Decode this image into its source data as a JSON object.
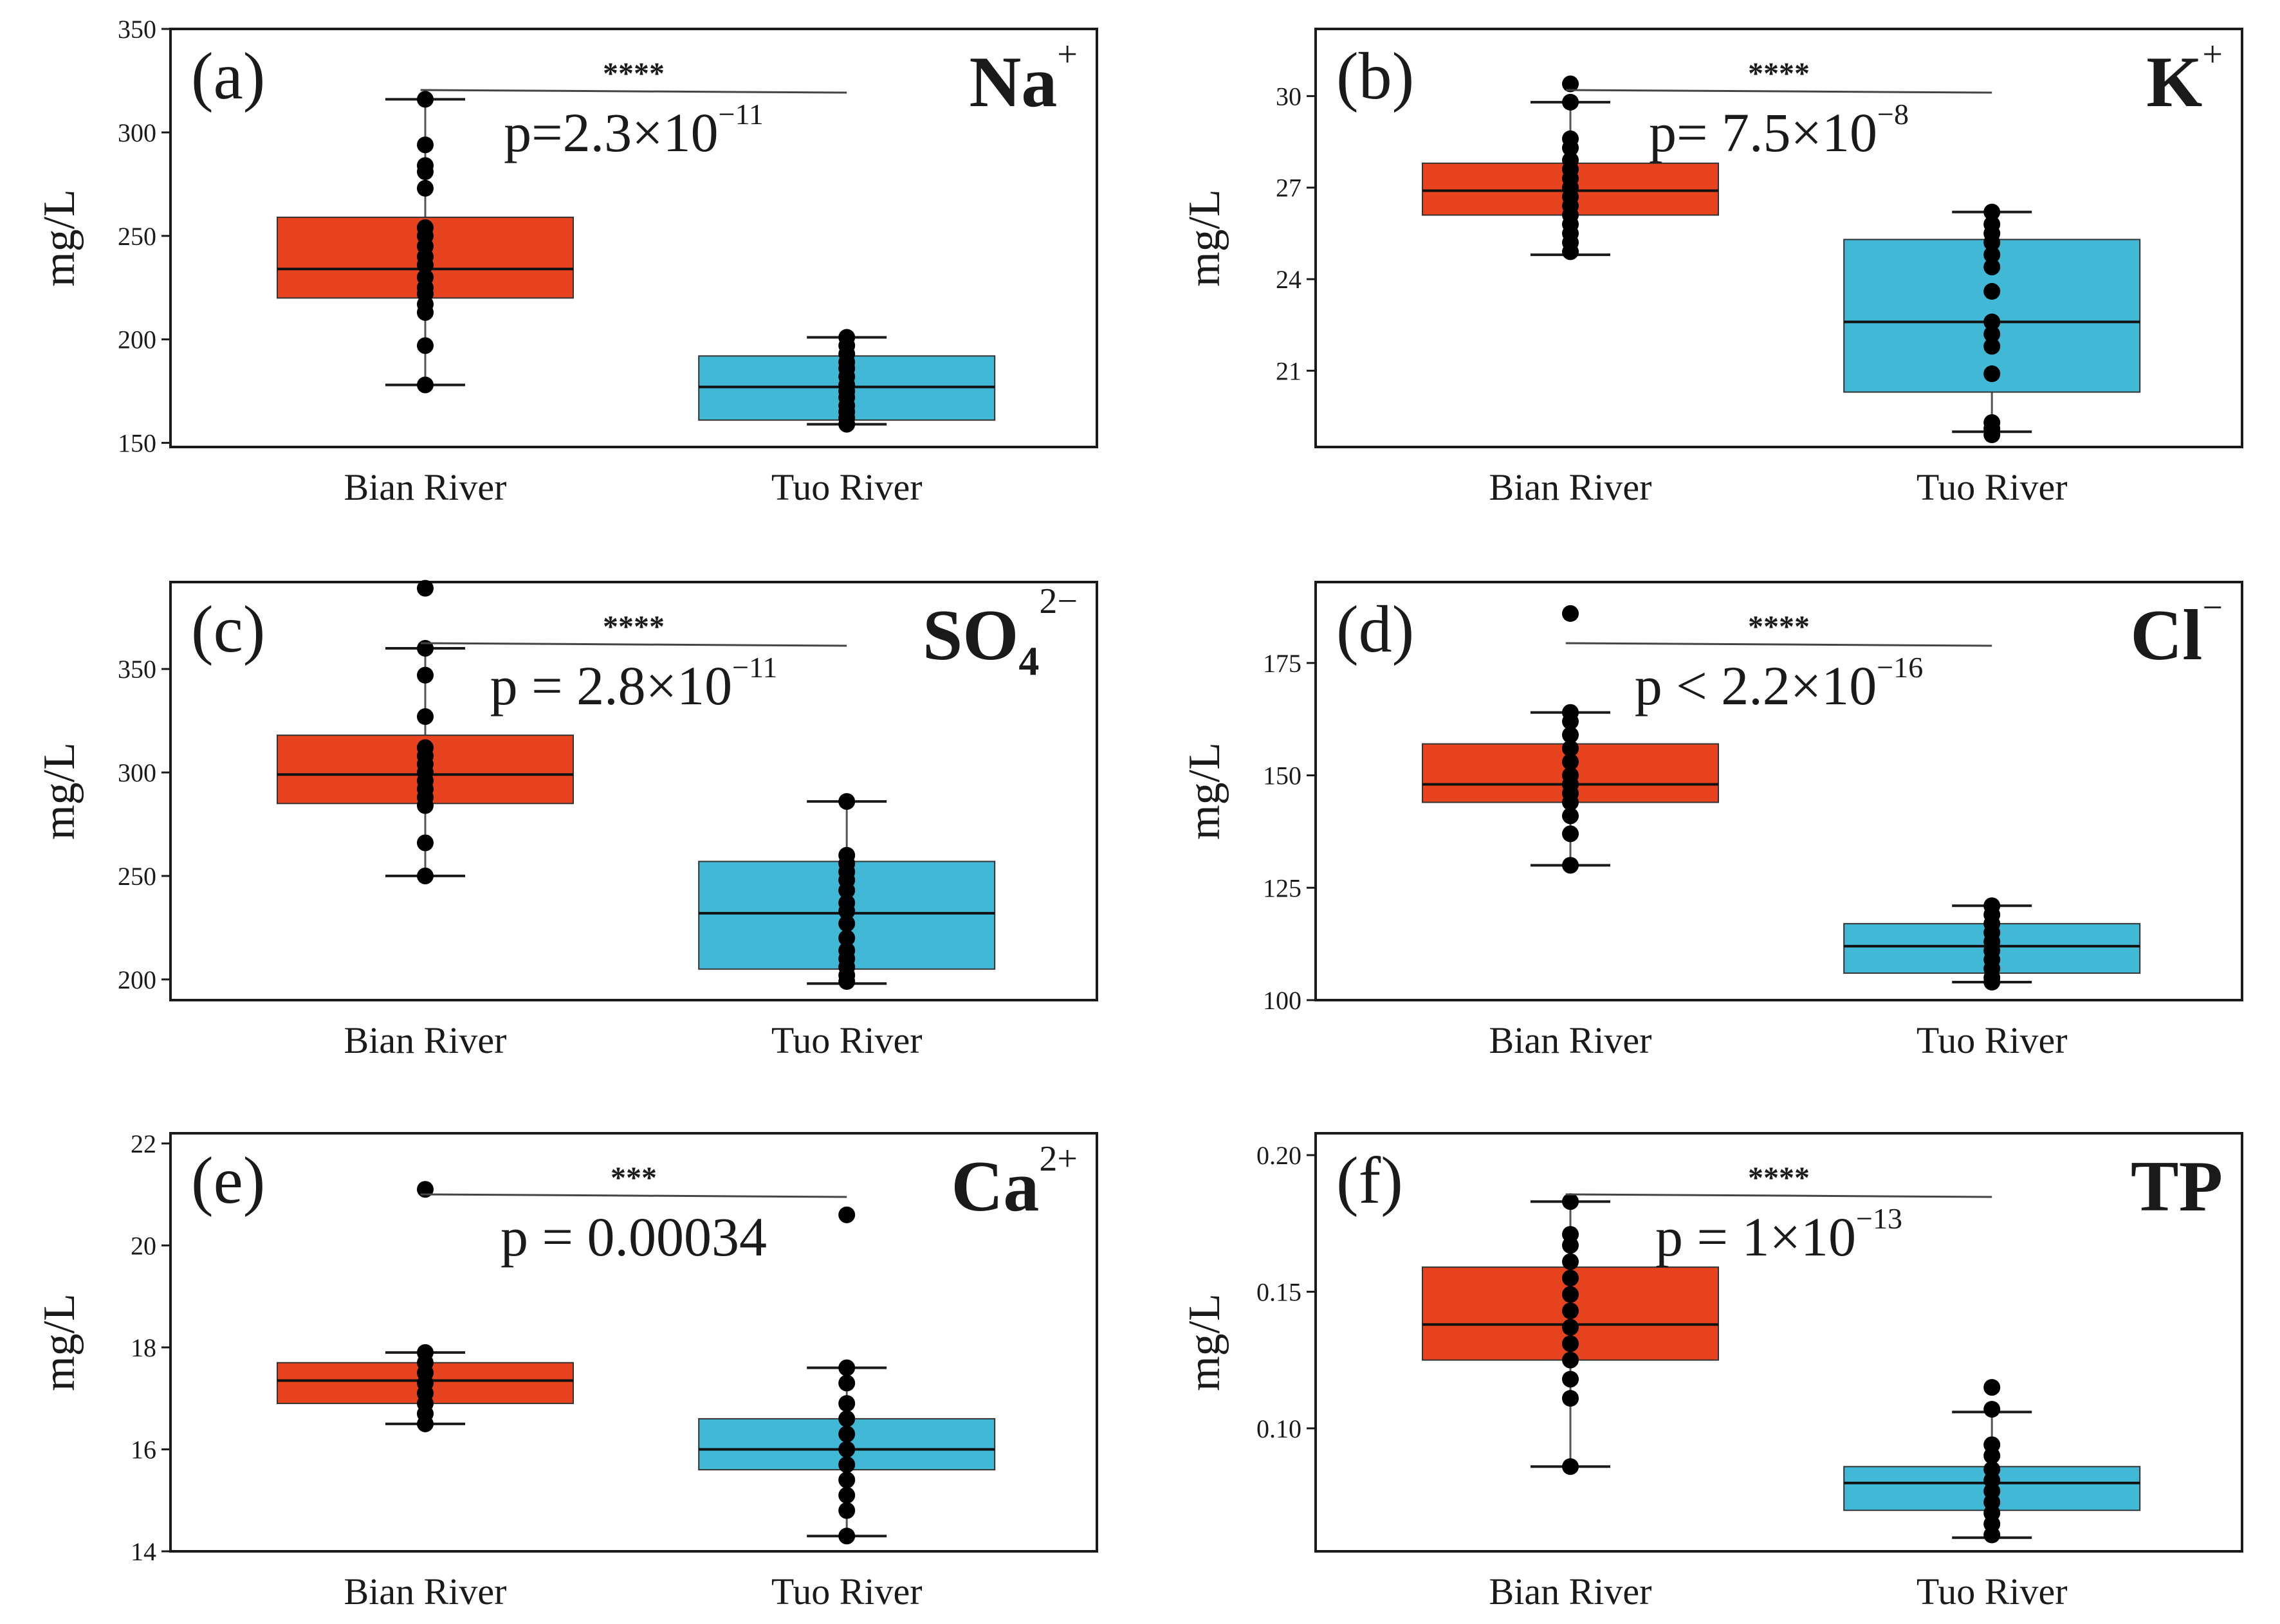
{
  "figure": {
    "colors": {
      "bian": "#e8431f",
      "tuo": "#40b8d6",
      "points": "#000000",
      "frame": "#1a1a1a"
    }
  },
  "chart_data": [
    {
      "id": "a",
      "type": "box",
      "panel_label": "(a)",
      "ion": {
        "base": "Na",
        "sub": "",
        "sup": "+"
      },
      "ylabel": "mg/L",
      "ylim": [
        148,
        350
      ],
      "yticks": [
        150,
        200,
        250,
        300,
        350
      ],
      "categories": [
        "Bian River",
        "Tuo River"
      ],
      "significance": "****",
      "pvalue": {
        "base": "p=2.3×10",
        "sup": "−11"
      },
      "series": [
        {
          "name": "Bian River",
          "q1": 220,
          "median": 234,
          "q3": 259,
          "whisker_low": 178,
          "whisker_high": 316,
          "points": [
            316,
            294,
            284,
            281,
            273,
            254,
            250,
            245,
            240,
            236,
            230,
            225,
            222,
            217,
            213,
            197,
            178
          ]
        },
        {
          "name": "Tuo River",
          "q1": 161,
          "median": 177,
          "q3": 192,
          "whisker_low": 159,
          "whisker_high": 201,
          "points": [
            201,
            197,
            193,
            189,
            186,
            182,
            178,
            175,
            172,
            168,
            165,
            162,
            159
          ]
        }
      ]
    },
    {
      "id": "b",
      "type": "box",
      "panel_label": "(b)",
      "ion": {
        "base": "K",
        "sub": "",
        "sup": "+"
      },
      "ylabel": "mg/L",
      "ylim": [
        18.5,
        32.2
      ],
      "yticks": [
        21,
        24,
        27,
        30
      ],
      "categories": [
        "Bian River",
        "Tuo River"
      ],
      "significance": "****",
      "pvalue": {
        "base": "p= 7.5×10",
        "sup": "−8"
      },
      "series": [
        {
          "name": "Bian River",
          "q1": 26.1,
          "median": 26.9,
          "q3": 27.8,
          "whisker_low": 24.8,
          "whisker_high": 29.8,
          "points": [
            30.4,
            29.8,
            28.6,
            28.3,
            27.9,
            27.6,
            27.3,
            27.0,
            26.7,
            26.4,
            26.1,
            25.8,
            25.5,
            25.2,
            24.9
          ]
        },
        {
          "name": "Tuo River",
          "q1": 20.3,
          "median": 22.6,
          "q3": 25.3,
          "whisker_low": 19.0,
          "whisker_high": 26.2,
          "points": [
            26.2,
            25.8,
            25.5,
            25.2,
            24.8,
            24.4,
            23.6,
            22.6,
            22.2,
            21.8,
            20.9,
            19.3,
            19.1,
            18.9
          ]
        }
      ]
    },
    {
      "id": "c",
      "type": "box",
      "panel_label": "(c)",
      "ion": {
        "base": "SO",
        "sub": "4",
        "sup": "2−"
      },
      "ylabel": "mg/L",
      "ylim": [
        190,
        392
      ],
      "yticks": [
        200,
        250,
        300,
        350
      ],
      "categories": [
        "Bian River",
        "Tuo River"
      ],
      "significance": "****",
      "pvalue": {
        "base": "p = 2.8×10",
        "sup": "−11"
      },
      "series": [
        {
          "name": "Bian River",
          "q1": 285,
          "median": 299,
          "q3": 318,
          "whisker_low": 250,
          "whisker_high": 360,
          "points": [
            389,
            360,
            347,
            327,
            312,
            308,
            304,
            300,
            296,
            292,
            288,
            284,
            266,
            250
          ]
        },
        {
          "name": "Tuo River",
          "q1": 205,
          "median": 232,
          "q3": 257,
          "whisker_low": 198,
          "whisker_high": 286,
          "points": [
            286,
            260,
            256,
            252,
            248,
            243,
            237,
            233,
            227,
            220,
            214,
            210,
            206,
            202,
            199
          ]
        }
      ]
    },
    {
      "id": "d",
      "type": "box",
      "panel_label": "(d)",
      "ion": {
        "base": "Cl",
        "sub": "",
        "sup": "−"
      },
      "ylabel": "mg/L",
      "ylim": [
        100,
        193
      ],
      "yticks": [
        100,
        125,
        150,
        175
      ],
      "categories": [
        "Bian River",
        "Tuo River"
      ],
      "significance": "****",
      "pvalue": {
        "base": "p < 2.2×10",
        "sup": "−16"
      },
      "series": [
        {
          "name": "Bian River",
          "q1": 144,
          "median": 148,
          "q3": 157,
          "whisker_low": 130,
          "whisker_high": 164,
          "points": [
            186,
            164,
            162,
            159,
            156,
            153,
            150,
            148,
            146,
            144,
            141,
            137,
            130
          ]
        },
        {
          "name": "Tuo River",
          "q1": 106,
          "median": 112,
          "q3": 117,
          "whisker_low": 104,
          "whisker_high": 121,
          "points": [
            121,
            119,
            117,
            115,
            113,
            111,
            109,
            107,
            105,
            104
          ]
        }
      ]
    },
    {
      "id": "e",
      "type": "box",
      "panel_label": "(e)",
      "ion": {
        "base": "Ca",
        "sub": "",
        "sup": "2+"
      },
      "ylabel": "mg/L",
      "ylim": [
        14,
        22.2
      ],
      "yticks": [
        14,
        16,
        18,
        20,
        22
      ],
      "categories": [
        "Bian River",
        "Tuo River"
      ],
      "significance": "***",
      "pvalue": {
        "base": "p = 0.00034",
        "sup": ""
      },
      "series": [
        {
          "name": "Bian River",
          "q1": 16.9,
          "median": 17.35,
          "q3": 17.7,
          "whisker_low": 16.5,
          "whisker_high": 17.9,
          "points": [
            21.1,
            17.9,
            17.7,
            17.5,
            17.3,
            17.1,
            16.9,
            16.7,
            16.5
          ]
        },
        {
          "name": "Tuo River",
          "q1": 15.6,
          "median": 16.0,
          "q3": 16.6,
          "whisker_low": 14.3,
          "whisker_high": 17.6,
          "points": [
            20.6,
            17.6,
            17.3,
            16.9,
            16.6,
            16.3,
            16.0,
            15.7,
            15.4,
            15.1,
            14.8,
            14.3
          ]
        }
      ]
    },
    {
      "id": "f",
      "type": "box",
      "panel_label": "(f)",
      "ion": {
        "base": "TP",
        "sub": "",
        "sup": ""
      },
      "ylabel": "mg/L",
      "ylim": [
        0.055,
        0.208
      ],
      "yticks": [
        0.1,
        0.15,
        0.2
      ],
      "categories": [
        "Bian River",
        "Tuo River"
      ],
      "significance": "****",
      "pvalue": {
        "base": "p = 1×10",
        "sup": "−13"
      },
      "series": [
        {
          "name": "Bian River",
          "q1": 0.125,
          "median": 0.138,
          "q3": 0.159,
          "whisker_low": 0.086,
          "whisker_high": 0.183,
          "points": [
            0.183,
            0.171,
            0.167,
            0.161,
            0.155,
            0.149,
            0.143,
            0.137,
            0.131,
            0.125,
            0.118,
            0.111,
            0.086
          ]
        },
        {
          "name": "Tuo River",
          "q1": 0.07,
          "median": 0.08,
          "q3": 0.086,
          "whisker_low": 0.06,
          "whisker_high": 0.106,
          "points": [
            0.115,
            0.107,
            0.094,
            0.09,
            0.085,
            0.081,
            0.077,
            0.073,
            0.069,
            0.065,
            0.061
          ]
        }
      ]
    }
  ]
}
